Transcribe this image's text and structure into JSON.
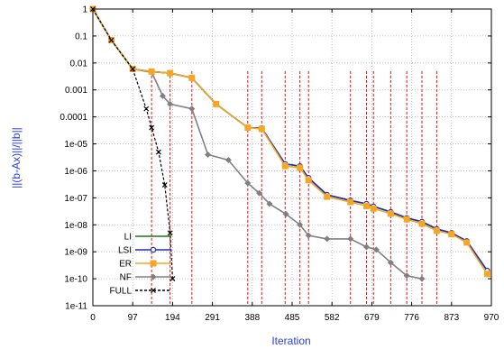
{
  "chart_data": {
    "type": "line",
    "xlabel": "Iteration",
    "ylabel": "||(b-Ax)||/||b||",
    "xlim": [
      0,
      970
    ],
    "ylim_log10": [
      -11,
      0
    ],
    "y_scale": "log",
    "grid": true,
    "legend_position": "bottom-left",
    "x_ticks": [
      "0",
      "97",
      "194",
      "291",
      "388",
      "485",
      "582",
      "679",
      "776",
      "873",
      "970"
    ],
    "y_ticks": [
      "1",
      "0.1",
      "0.01",
      "0.001",
      "0.0001",
      "1e-05",
      "1e-06",
      "1e-07",
      "1e-08",
      "1e-09",
      "1e-10",
      "1e-11"
    ],
    "vlines": [
      143,
      188,
      241,
      377,
      411,
      468,
      504,
      525,
      627,
      666,
      683,
      725,
      764,
      801,
      837
    ],
    "series": [
      {
        "name": "LI",
        "color": "#1a7a1a",
        "marker": "none",
        "points": [
          [
            0,
            1
          ],
          [
            45,
            0.07
          ],
          [
            97,
            0.006
          ],
          [
            143,
            0.0048
          ],
          [
            188,
            0.0042
          ],
          [
            241,
            0.0028
          ],
          [
            300,
            0.0003
          ],
          [
            377,
            4e-05
          ],
          [
            411,
            3.8e-05
          ],
          [
            468,
            1.8e-06
          ],
          [
            504,
            1.5e-06
          ],
          [
            525,
            5.5e-07
          ],
          [
            570,
            1.3e-07
          ],
          [
            627,
            8e-08
          ],
          [
            666,
            6e-08
          ],
          [
            683,
            4.8e-08
          ],
          [
            725,
            3e-08
          ],
          [
            764,
            1.8e-08
          ],
          [
            801,
            1.3e-08
          ],
          [
            837,
            7e-09
          ],
          [
            873,
            5e-09
          ],
          [
            910,
            2.5e-09
          ],
          [
            960,
            2e-10
          ]
        ]
      },
      {
        "name": "LSI",
        "color": "#1f2dbd",
        "marker": "circle",
        "points": [
          [
            0,
            1
          ],
          [
            45,
            0.07
          ],
          [
            97,
            0.006
          ],
          [
            143,
            0.0048
          ],
          [
            188,
            0.0042
          ],
          [
            241,
            0.0028
          ],
          [
            300,
            0.0003
          ],
          [
            377,
            4e-05
          ],
          [
            411,
            3.8e-05
          ],
          [
            468,
            1.8e-06
          ],
          [
            504,
            1.5e-06
          ],
          [
            525,
            5.5e-07
          ],
          [
            570,
            1.3e-07
          ],
          [
            627,
            8e-08
          ],
          [
            666,
            6e-08
          ],
          [
            683,
            4.8e-08
          ],
          [
            725,
            3e-08
          ],
          [
            764,
            1.8e-08
          ],
          [
            801,
            1.3e-08
          ],
          [
            837,
            7e-09
          ],
          [
            873,
            5e-09
          ],
          [
            910,
            2.5e-09
          ],
          [
            960,
            2e-10
          ]
        ]
      },
      {
        "name": "ER",
        "color": "#f5a623",
        "marker": "square",
        "points": [
          [
            0,
            1
          ],
          [
            45,
            0.07
          ],
          [
            97,
            0.006
          ],
          [
            143,
            0.0048
          ],
          [
            188,
            0.0042
          ],
          [
            241,
            0.0028
          ],
          [
            300,
            0.0003
          ],
          [
            377,
            4e-05
          ],
          [
            411,
            3.6e-05
          ],
          [
            468,
            1.5e-06
          ],
          [
            504,
            1.3e-06
          ],
          [
            525,
            4.5e-07
          ],
          [
            570,
            1.1e-07
          ],
          [
            627,
            7e-08
          ],
          [
            666,
            5e-08
          ],
          [
            683,
            4e-08
          ],
          [
            725,
            2.6e-08
          ],
          [
            764,
            1.6e-08
          ],
          [
            801,
            1.1e-08
          ],
          [
            837,
            6e-09
          ],
          [
            873,
            4.5e-09
          ],
          [
            910,
            2.2e-09
          ],
          [
            960,
            1.5e-10
          ]
        ]
      },
      {
        "name": "NF",
        "color": "#808080",
        "marker": "diamond",
        "points": [
          [
            0,
            1
          ],
          [
            45,
            0.07
          ],
          [
            97,
            0.006
          ],
          [
            143,
            0.0045
          ],
          [
            170,
            0.0006
          ],
          [
            188,
            0.0003
          ],
          [
            241,
            0.0002
          ],
          [
            280,
            4e-06
          ],
          [
            330,
            2.5e-06
          ],
          [
            377,
            3.5e-07
          ],
          [
            405,
            1.5e-07
          ],
          [
            430,
            6e-08
          ],
          [
            470,
            2.5e-08
          ],
          [
            504,
            1e-08
          ],
          [
            525,
            4e-09
          ],
          [
            570,
            3e-09
          ],
          [
            627,
            3e-09
          ],
          [
            666,
            1.5e-09
          ],
          [
            690,
            1.2e-09
          ],
          [
            725,
            4e-10
          ],
          [
            764,
            1.3e-10
          ],
          [
            801,
            1e-10
          ]
        ]
      },
      {
        "name": "FULL",
        "color": "#000000",
        "marker": "x",
        "dashed": true,
        "points": [
          [
            0,
            1
          ],
          [
            45,
            0.07
          ],
          [
            97,
            0.006
          ],
          [
            130,
            0.0002
          ],
          [
            143,
            4e-05
          ],
          [
            160,
            5e-06
          ],
          [
            175,
            3e-07
          ],
          [
            188,
            5e-09
          ],
          [
            194,
            1e-10
          ]
        ]
      }
    ]
  }
}
